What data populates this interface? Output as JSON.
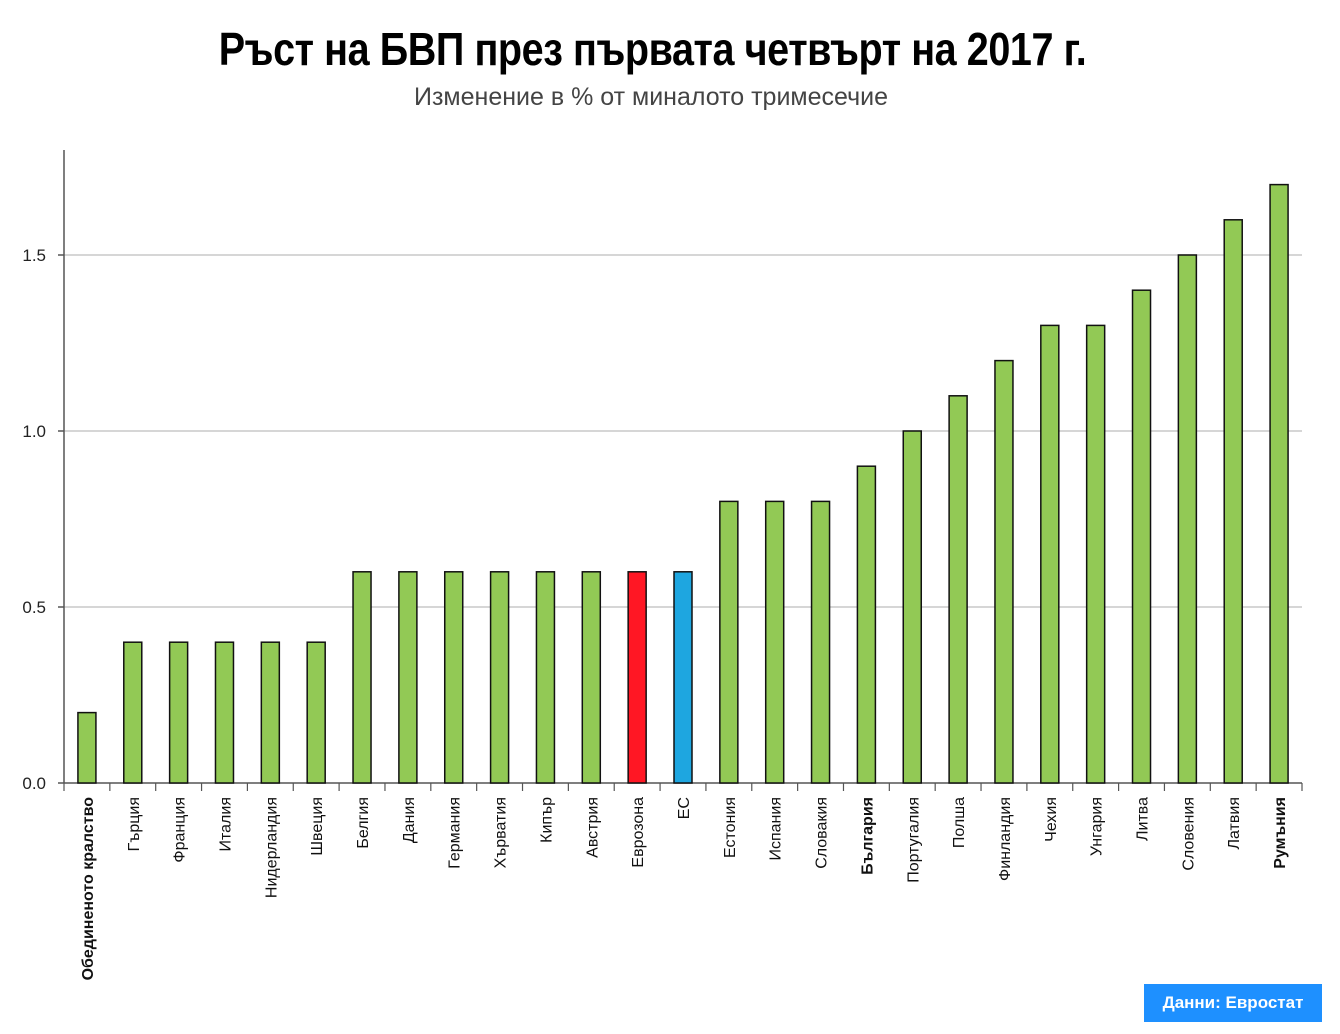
{
  "title": "Ръст на БВП през първата четвърт на 2017 г.",
  "subtitle": "Изменение в % от миналото тримесечие",
  "source": "Данни: Евростат",
  "colors": {
    "default": "#92c955",
    "eurozone": "#ff1724",
    "eu": "#1ea6e0",
    "bar_outline": "#111111",
    "grid": "#c8c8c8",
    "axis": "#555555"
  },
  "chart_data": {
    "type": "bar",
    "title": "Ръст на БВП през първата четвърт на 2017 г.",
    "subtitle": "Изменение в % от миналото тримесечие",
    "xlabel": "",
    "ylabel": "",
    "ylim": [
      0,
      1.8
    ],
    "yticks": [
      "0.0",
      "0.5",
      "1.0",
      "1.5"
    ],
    "grid": true,
    "categories": [
      "Обединеното кралство",
      "Гърция",
      "Франция",
      "Италия",
      "Нидерландия",
      "Швеция",
      "Белгия",
      "Дания",
      "Германия",
      "Хърватия",
      "Кипър",
      "Австрия",
      "Еврозона",
      "ЕС",
      "Естония",
      "Испания",
      "Словакия",
      "България",
      "Португалия",
      "Полша",
      "Финландия",
      "Чехия",
      "Унгария",
      "Литва",
      "Словения",
      "Латвия",
      "Румъния"
    ],
    "values": [
      0.2,
      0.4,
      0.4,
      0.4,
      0.4,
      0.4,
      0.6,
      0.6,
      0.6,
      0.6,
      0.6,
      0.6,
      0.6,
      0.6,
      0.8,
      0.8,
      0.8,
      0.9,
      1.0,
      1.1,
      1.2,
      1.3,
      1.3,
      1.4,
      1.5,
      1.6,
      1.7
    ],
    "bold_categories": [
      "Обединеното кралство",
      "България",
      "Румъния"
    ],
    "highlight": {
      "Еврозона": "eurozone",
      "ЕС": "eu"
    }
  }
}
